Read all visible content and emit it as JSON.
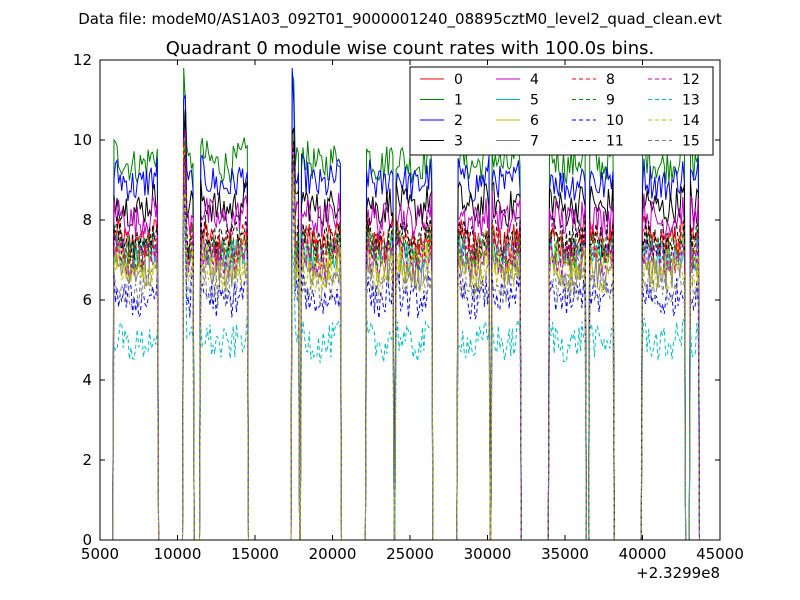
{
  "chart_data": {
    "type": "line",
    "suptitle": "Data file: modeM0/AS1A03_092T01_9000001240_08895cztM0_level2_quad_clean.evt",
    "title": "Quadrant 0 module wise count rates with 100.0s bins.",
    "xlabel": "",
    "ylabel": "",
    "x_offset_label": "+2.3299e8",
    "xlim": [
      5000,
      45000
    ],
    "ylim": [
      0,
      12
    ],
    "x_ticks": [
      "5000",
      "10000",
      "15000",
      "20000",
      "25000",
      "30000",
      "35000",
      "40000",
      "45000"
    ],
    "y_ticks": [
      "0",
      "2",
      "4",
      "6",
      "8",
      "10",
      "12"
    ],
    "grid": false,
    "legend_position": "top-right",
    "segments": [
      {
        "start": 5900,
        "end": 8700
      },
      {
        "start": 10400,
        "end": 11000
      },
      {
        "start": 11500,
        "end": 14500
      },
      {
        "start": 17400,
        "end": 17800
      },
      {
        "start": 18000,
        "end": 20500
      },
      {
        "start": 22200,
        "end": 23900
      },
      {
        "start": 24100,
        "end": 26400
      },
      {
        "start": 28100,
        "end": 30100
      },
      {
        "start": 30300,
        "end": 32100
      },
      {
        "start": 34000,
        "end": 36300
      },
      {
        "start": 36600,
        "end": 38100
      },
      {
        "start": 40000,
        "end": 42700
      },
      {
        "start": 43100,
        "end": 43600
      }
    ],
    "series": [
      {
        "name": "0",
        "color": "#ff0000",
        "dash": "solid",
        "level": 7.7
      },
      {
        "name": "1",
        "color": "#008000",
        "dash": "solid",
        "level": 9.7
      },
      {
        "name": "2",
        "color": "#0000ff",
        "dash": "solid",
        "level": 9.2
      },
      {
        "name": "3",
        "color": "#000000",
        "dash": "solid",
        "level": 8.6
      },
      {
        "name": "4",
        "color": "#bf00bf",
        "dash": "solid",
        "level": 8.3
      },
      {
        "name": "5",
        "color": "#00bfbf",
        "dash": "solid",
        "level": 7.4
      },
      {
        "name": "6",
        "color": "#bfbf00",
        "dash": "solid",
        "level": 7.2
      },
      {
        "name": "7",
        "color": "#808080",
        "dash": "solid",
        "level": 7.0
      },
      {
        "name": "8",
        "color": "#ff0000",
        "dash": "dashed",
        "level": 7.6
      },
      {
        "name": "9",
        "color": "#008000",
        "dash": "dashed",
        "level": 7.5
      },
      {
        "name": "10",
        "color": "#0000ff",
        "dash": "dashed",
        "level": 6.3
      },
      {
        "name": "11",
        "color": "#000000",
        "dash": "dashed",
        "level": 7.8
      },
      {
        "name": "12",
        "color": "#bf00bf",
        "dash": "dashed",
        "level": 7.3
      },
      {
        "name": "13",
        "color": "#00bfbf",
        "dash": "dashed",
        "level": 5.2
      },
      {
        "name": "14",
        "color": "#bfbf00",
        "dash": "dashed",
        "level": 6.9
      },
      {
        "name": "15",
        "color": "#808080",
        "dash": "dashed",
        "level": 6.6
      }
    ]
  }
}
